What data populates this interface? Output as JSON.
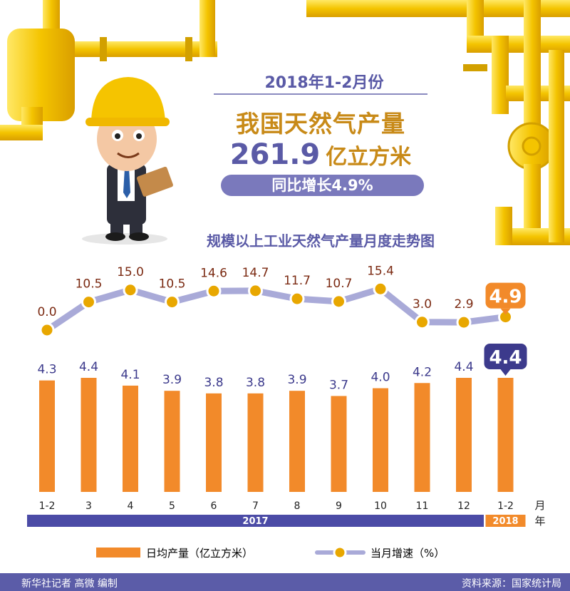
{
  "header": {
    "period": "2018年1-2月份",
    "title": "我国天然气产量",
    "value": "261.9",
    "unit": "亿立方米",
    "growth": "同比增长4.9%"
  },
  "chart_title": "规模以上工业天然气产量月度走势图",
  "chart_data": {
    "type": "bar",
    "categories": [
      "1-2",
      "3",
      "4",
      "5",
      "6",
      "7",
      "8",
      "9",
      "10",
      "11",
      "12",
      "1-2"
    ],
    "series": [
      {
        "name": "日均产量（亿立方米）",
        "type": "bar",
        "values": [
          4.3,
          4.4,
          4.1,
          3.9,
          3.8,
          3.8,
          3.9,
          3.7,
          4.0,
          4.2,
          4.4,
          4.4
        ]
      },
      {
        "name": "当月增速（%）",
        "type": "line",
        "values": [
          0.0,
          10.5,
          15.0,
          10.5,
          14.6,
          14.7,
          11.7,
          10.7,
          15.4,
          3.0,
          2.9,
          4.9
        ]
      }
    ],
    "year_groups": [
      {
        "label": "2017",
        "from": 0,
        "to": 10
      },
      {
        "label": "2018",
        "from": 11,
        "to": 11
      }
    ],
    "month_unit": "月",
    "year_unit": "年",
    "colors": {
      "bar": "#f28a2a",
      "line": "#a9aad8",
      "marker": "#e8a700",
      "label_bar": "#3c3a8c",
      "label_line": "#7b2a12",
      "accent": "#f28a2a",
      "highlight_bar": "#3c3a8c"
    }
  },
  "legend": {
    "bar_label": "日均产量（亿立方米）",
    "line_label": "当月增速（%）"
  },
  "footer": {
    "credit": "新华社记者 高微 编制",
    "source": "资料来源：国家统计局"
  }
}
